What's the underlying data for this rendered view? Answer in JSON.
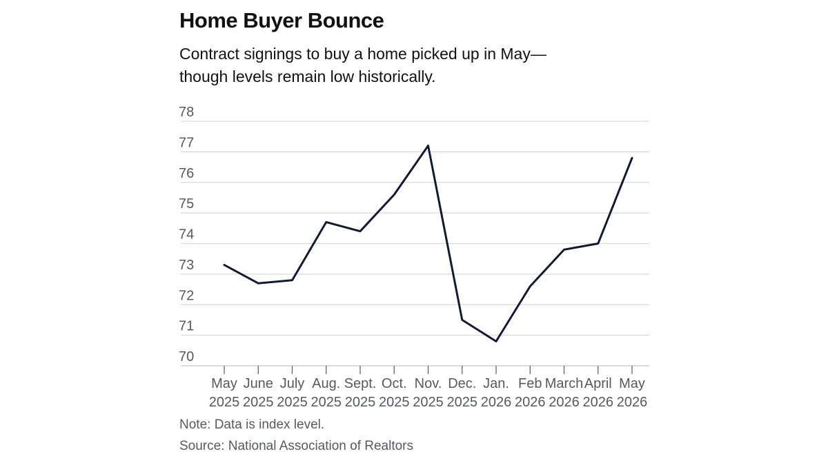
{
  "chart_data": {
    "type": "line",
    "title": "Home Buyer Bounce",
    "subtitle": "Contract signings to buy a home picked up in May—though levels remain low historically.",
    "categories": [
      [
        "May",
        "2025"
      ],
      [
        "June",
        "2025"
      ],
      [
        "July",
        "2025"
      ],
      [
        "Aug.",
        "2025"
      ],
      [
        "Sept.",
        "2025"
      ],
      [
        "Oct.",
        "2025"
      ],
      [
        "Nov.",
        "2025"
      ],
      [
        "Dec.",
        "2025"
      ],
      [
        "Jan.",
        "2026"
      ],
      [
        "Feb",
        "2026"
      ],
      [
        "March",
        "2026"
      ],
      [
        "April",
        "2026"
      ],
      [
        "May",
        "2026"
      ]
    ],
    "values": [
      73.3,
      72.7,
      72.8,
      74.7,
      74.4,
      75.6,
      77.2,
      71.5,
      70.8,
      72.6,
      73.8,
      74.0,
      76.8
    ],
    "ylim": [
      70,
      78
    ],
    "yticks": [
      70,
      71,
      72,
      73,
      74,
      75,
      76,
      77,
      78
    ],
    "grid": true,
    "line_color": "#121a33",
    "grid_color": "#d9dadc",
    "note": "Note: Data is index level.",
    "source": "Source: National Association of Realtors"
  }
}
